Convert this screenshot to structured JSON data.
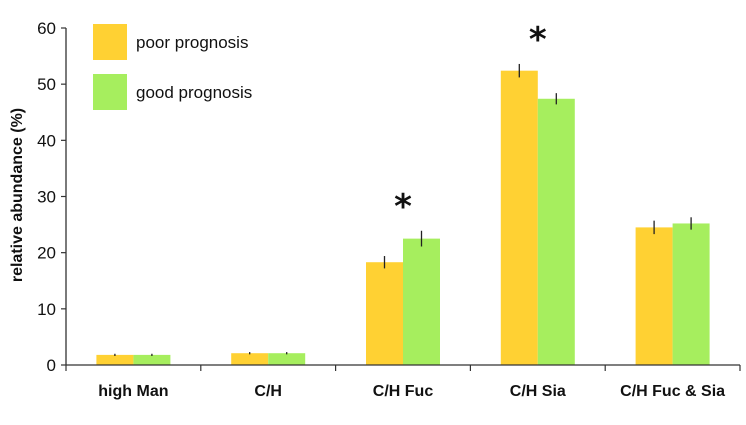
{
  "chart_data": {
    "type": "bar",
    "title": "",
    "xlabel": "",
    "ylabel": "relative abundance (%)",
    "ylim": [
      0,
      60
    ],
    "yticks": [
      0,
      10,
      20,
      30,
      40,
      50,
      60
    ],
    "grid": false,
    "legend_position": "top-left",
    "categories": [
      "high Man",
      "C/H",
      "C/H Fuc",
      "C/H Sia",
      "C/H Fuc & Sia"
    ],
    "series": [
      {
        "name": "poor prognosis",
        "color": "#FFD133",
        "values": [
          1.8,
          2.1,
          18.3,
          52.4,
          24.5
        ],
        "errors": [
          0.2,
          0.2,
          1.1,
          1.2,
          1.2
        ]
      },
      {
        "name": "good prognosis",
        "color": "#A6EE5E",
        "values": [
          1.8,
          2.1,
          22.5,
          47.4,
          25.2
        ],
        "errors": [
          0.2,
          0.2,
          1.4,
          1.0,
          1.1
        ]
      }
    ],
    "annotations": [
      {
        "category": "C/H Fuc",
        "text": "*"
      },
      {
        "category": "C/H Sia",
        "text": "*"
      }
    ]
  }
}
